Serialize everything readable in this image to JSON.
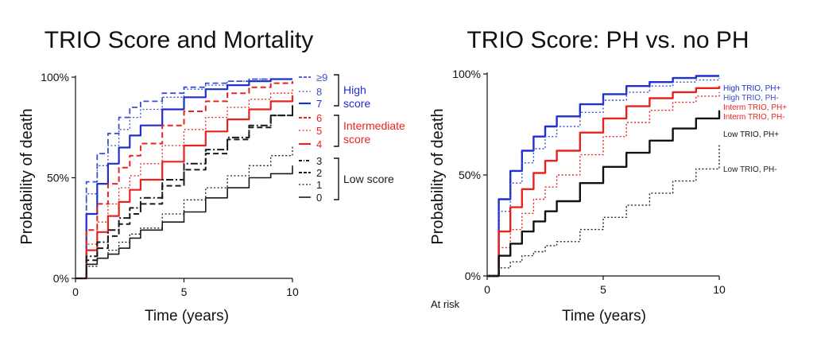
{
  "chart_data": [
    {
      "type": "line",
      "title": "TRIO Score and Mortality",
      "xlabel": "Time (years)",
      "ylabel": "Probability of death",
      "xlim": [
        0,
        10
      ],
      "ylim": [
        0,
        100
      ],
      "x_ticks": [
        "0",
        "5",
        "10"
      ],
      "y_ticks": [
        "0%",
        "50%",
        "100%"
      ],
      "legend_groups": [
        {
          "label_lines": [
            "High",
            "score"
          ],
          "color": "#1f2fd0",
          "scores": [
            "≥9",
            "8",
            "7"
          ]
        },
        {
          "label_lines": [
            "Intermediate",
            "score"
          ],
          "color": "#e8231f",
          "scores": [
            "6",
            "5",
            "4"
          ]
        },
        {
          "label_lines": [
            "Low score"
          ],
          "color": "#1a1a1a",
          "scores": [
            "3",
            "2",
            "1",
            "0"
          ]
        }
      ],
      "series": [
        {
          "name": "≥9",
          "color": "#3a4fd0",
          "style": "dashed",
          "width": 1.8,
          "x": [
            0,
            0.5,
            1,
            1.5,
            2,
            2.5,
            3,
            4,
            5,
            6,
            7,
            8,
            9,
            10
          ],
          "y": [
            0,
            48,
            62,
            72,
            80,
            85,
            88,
            92,
            95,
            97,
            98,
            99,
            99,
            99
          ]
        },
        {
          "name": "8",
          "color": "#3a4fd0",
          "style": "dotted",
          "width": 1.3,
          "x": [
            0,
            0.5,
            1,
            1.5,
            2,
            2.5,
            3,
            4,
            5,
            6,
            7,
            8,
            9,
            10
          ],
          "y": [
            0,
            42,
            56,
            66,
            74,
            80,
            84,
            90,
            94,
            96,
            98,
            99,
            99,
            99
          ]
        },
        {
          "name": "7",
          "color": "#1f2fd0",
          "style": "solid",
          "width": 2.2,
          "x": [
            0,
            0.5,
            1,
            1.5,
            2,
            2.5,
            3,
            4,
            5,
            6,
            7,
            8,
            9,
            10
          ],
          "y": [
            0,
            32,
            47,
            57,
            65,
            71,
            76,
            84,
            90,
            94,
            96,
            98,
            99,
            99
          ]
        },
        {
          "name": "6",
          "color": "#e8231f",
          "style": "dashed",
          "width": 2.0,
          "x": [
            0,
            0.5,
            1,
            1.5,
            2,
            2.5,
            3,
            4,
            5,
            6,
            7,
            8,
            9,
            10
          ],
          "y": [
            0,
            24,
            37,
            47,
            55,
            61,
            67,
            76,
            83,
            88,
            92,
            95,
            97,
            98
          ]
        },
        {
          "name": "5",
          "color": "#e8231f",
          "style": "dotted",
          "width": 1.3,
          "x": [
            0,
            0.5,
            1,
            1.5,
            2,
            2.5,
            3,
            4,
            5,
            6,
            7,
            8,
            9,
            10
          ],
          "y": [
            0,
            17,
            28,
            37,
            45,
            51,
            57,
            66,
            74,
            80,
            85,
            89,
            92,
            94
          ]
        },
        {
          "name": "4",
          "color": "#e8231f",
          "style": "solid",
          "width": 2.2,
          "x": [
            0,
            0.5,
            1,
            1.5,
            2,
            2.5,
            3,
            4,
            5,
            6,
            7,
            8,
            9,
            10
          ],
          "y": [
            0,
            14,
            23,
            31,
            38,
            44,
            49,
            58,
            66,
            73,
            79,
            84,
            88,
            91
          ]
        },
        {
          "name": "3",
          "color": "#1a1a1a",
          "style": "dashdot",
          "width": 2.0,
          "x": [
            0,
            0.5,
            1,
            1.5,
            2,
            2.5,
            3,
            4,
            5,
            6,
            7,
            8,
            9,
            10
          ],
          "y": [
            0,
            11,
            18,
            24,
            30,
            35,
            40,
            49,
            57,
            64,
            70,
            76,
            81,
            85
          ]
        },
        {
          "name": "2",
          "color": "#1a1a1a",
          "style": "dashed",
          "width": 2.0,
          "x": [
            0,
            0.5,
            1,
            1.5,
            2,
            2.5,
            3,
            4,
            5,
            6,
            7,
            8,
            9,
            10
          ],
          "y": [
            0,
            9,
            15,
            21,
            27,
            32,
            37,
            46,
            54,
            62,
            69,
            75,
            81,
            86
          ]
        },
        {
          "name": "1",
          "color": "#1a1a1a",
          "style": "dotted",
          "width": 1.3,
          "x": [
            0,
            0.5,
            1,
            1.5,
            2,
            2.5,
            3,
            4,
            5,
            6,
            7,
            8,
            9,
            10
          ],
          "y": [
            0,
            6,
            10,
            14,
            18,
            22,
            25,
            32,
            39,
            45,
            51,
            56,
            61,
            66
          ]
        },
        {
          "name": "0",
          "color": "#1a1a1a",
          "style": "solid",
          "width": 1.6,
          "x": [
            0,
            0.5,
            1,
            1.5,
            2,
            2.5,
            3,
            4,
            5,
            6,
            7,
            8,
            9,
            10
          ],
          "y": [
            0,
            7,
            10,
            12,
            15,
            20,
            24,
            28,
            33,
            40,
            45,
            50,
            52,
            56
          ]
        }
      ]
    },
    {
      "type": "line",
      "title": "TRIO Score: PH vs. no PH",
      "xlabel": "Time (years)",
      "ylabel": "Probability of death",
      "xlim": [
        0,
        10
      ],
      "ylim": [
        0,
        100
      ],
      "x_ticks": [
        "0",
        "5",
        "10"
      ],
      "y_ticks": [
        "0%",
        "50%",
        "100%"
      ],
      "at_risk_label": "At risk",
      "series": [
        {
          "name": "High TRIO,  PH+",
          "color": "#1f2fd0",
          "style": "solid",
          "width": 2.4,
          "x": [
            0,
            0.5,
            1,
            1.5,
            2,
            2.5,
            3,
            4,
            5,
            6,
            7,
            8,
            9,
            10
          ],
          "y": [
            0,
            38,
            52,
            62,
            69,
            74,
            79,
            85,
            90,
            94,
            96,
            98,
            99,
            99
          ]
        },
        {
          "name": "High TRIO,  PH-",
          "color": "#3a4fd0",
          "style": "dotted",
          "width": 1.4,
          "x": [
            0,
            0.5,
            1,
            1.5,
            2,
            2.5,
            3,
            4,
            5,
            6,
            7,
            8,
            9,
            10
          ],
          "y": [
            0,
            32,
            46,
            56,
            63,
            69,
            74,
            81,
            87,
            91,
            94,
            96,
            97,
            98
          ]
        },
        {
          "name": "Interm TRIO,  PH+",
          "color": "#e8231f",
          "style": "solid",
          "width": 2.4,
          "x": [
            0,
            0.5,
            1,
            1.5,
            2,
            2.5,
            3,
            4,
            5,
            6,
            7,
            8,
            9,
            10
          ],
          "y": [
            0,
            22,
            34,
            43,
            51,
            57,
            62,
            71,
            78,
            84,
            88,
            91,
            93,
            94
          ]
        },
        {
          "name": "Interm TRIO,  PH-",
          "color": "#e8231f",
          "style": "dotted",
          "width": 1.4,
          "x": [
            0,
            0.5,
            1,
            1.5,
            2,
            2.5,
            3,
            4,
            5,
            6,
            7,
            8,
            9,
            10
          ],
          "y": [
            0,
            14,
            23,
            31,
            38,
            44,
            50,
            60,
            69,
            76,
            82,
            86,
            89,
            91
          ]
        },
        {
          "name": "Low TRIO,  PH+",
          "color": "#111111",
          "style": "solid",
          "width": 2.4,
          "x": [
            0,
            0.5,
            1,
            1.5,
            2,
            2.5,
            3,
            4,
            5,
            6,
            7,
            8,
            9,
            10
          ],
          "y": [
            0,
            10,
            16,
            22,
            27,
            32,
            37,
            46,
            54,
            61,
            67,
            73,
            78,
            82
          ]
        },
        {
          "name": "Low TRIO,  PH-",
          "color": "#222222",
          "style": "dotted",
          "width": 1.4,
          "x": [
            0,
            0.5,
            1,
            1.5,
            2,
            2.5,
            3,
            4,
            5,
            6,
            7,
            8,
            9,
            10
          ],
          "y": [
            0,
            4,
            7,
            10,
            12,
            15,
            17,
            23,
            29,
            35,
            41,
            47,
            53,
            65
          ]
        }
      ]
    }
  ]
}
